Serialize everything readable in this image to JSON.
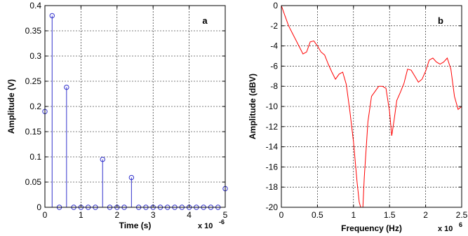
{
  "chart_data": [
    {
      "type": "stem",
      "panel_label": "a",
      "xlabel": "Time (s)",
      "ylabel": "Amplitude (V)",
      "x_multiplier": "x 10",
      "x_multiplier_exp": "-6",
      "xlim": [
        0,
        5
      ],
      "ylim": [
        0,
        0.4
      ],
      "xticks": [
        0,
        1,
        2,
        3,
        4,
        5
      ],
      "yticks": [
        0,
        0.05,
        0.1,
        0.15,
        0.2,
        0.25,
        0.3,
        0.35,
        0.4
      ],
      "xtick_labels": [
        "0",
        "1",
        "2",
        "3",
        "4",
        "5"
      ],
      "ytick_labels": [
        "0",
        "0.05",
        "0.1",
        "0.15",
        "0.2",
        "0.25",
        "0.3",
        "0.35",
        "0.4"
      ],
      "grid": true,
      "color": "#3333cc",
      "x": [
        0,
        0.2,
        0.4,
        0.6,
        0.8,
        1.0,
        1.2,
        1.4,
        1.6,
        1.8,
        2.0,
        2.2,
        2.4,
        2.6,
        2.8,
        3.0,
        3.2,
        3.4,
        3.6,
        3.8,
        4.0,
        4.2,
        4.4,
        4.6,
        4.8,
        5.0
      ],
      "y": [
        0.19,
        0.38,
        0,
        0.238,
        0,
        0,
        0,
        0,
        0.095,
        0,
        0,
        0,
        0.059,
        0,
        0,
        0,
        0,
        0,
        0,
        0,
        0,
        0,
        0,
        0,
        0,
        0.037
      ]
    },
    {
      "type": "line",
      "panel_label": "b",
      "xlabel": "Frequency (Hz)",
      "ylabel": "Amplitude (dBV)",
      "x_multiplier": "x 10",
      "x_multiplier_exp": "6",
      "xlim": [
        0,
        2.5
      ],
      "ylim": [
        -20,
        0
      ],
      "xticks": [
        0,
        0.5,
        1,
        1.5,
        2,
        2.5
      ],
      "yticks": [
        -20,
        -18,
        -16,
        -14,
        -12,
        -10,
        -8,
        -6,
        -4,
        -2,
        0
      ],
      "xtick_labels": [
        "0",
        "0.5",
        "1",
        "1.5",
        "2",
        "2.5"
      ],
      "ytick_labels": [
        "-20",
        "-18",
        "-16",
        "-14",
        "-12",
        "-10",
        "-8",
        "-6",
        "-4",
        "-2",
        "0"
      ],
      "grid": true,
      "color": "#ff0000",
      "x": [
        0,
        0.05,
        0.1,
        0.15,
        0.2,
        0.25,
        0.3,
        0.35,
        0.4,
        0.45,
        0.5,
        0.55,
        0.6,
        0.65,
        0.7,
        0.75,
        0.8,
        0.85,
        0.9,
        0.95,
        1.0,
        1.05,
        1.08,
        1.1,
        1.13,
        1.15,
        1.2,
        1.25,
        1.3,
        1.35,
        1.4,
        1.45,
        1.5,
        1.53,
        1.56,
        1.6,
        1.65,
        1.7,
        1.75,
        1.8,
        1.85,
        1.9,
        1.95,
        2.0,
        2.05,
        2.1,
        2.15,
        2.2,
        2.25,
        2.3,
        2.35,
        2.4,
        2.45,
        2.5
      ],
      "y": [
        0,
        -1.0,
        -2.0,
        -2.7,
        -3.4,
        -4.1,
        -4.8,
        -4.6,
        -3.6,
        -3.5,
        -4.0,
        -4.6,
        -4.9,
        -5.8,
        -6.6,
        -7.3,
        -6.8,
        -6.6,
        -7.8,
        -10.5,
        -13.5,
        -17.5,
        -19.5,
        -20,
        -20,
        -17.0,
        -11.5,
        -9.0,
        -8.5,
        -8.0,
        -8.0,
        -8.2,
        -10.5,
        -12.9,
        -11.5,
        -9.4,
        -8.6,
        -7.7,
        -6.3,
        -6.4,
        -7.0,
        -7.6,
        -7.3,
        -6.5,
        -5.4,
        -5.2,
        -5.6,
        -5.8,
        -5.6,
        -5.2,
        -6.3,
        -9.0,
        -10.3,
        -10.0
      ]
    }
  ]
}
